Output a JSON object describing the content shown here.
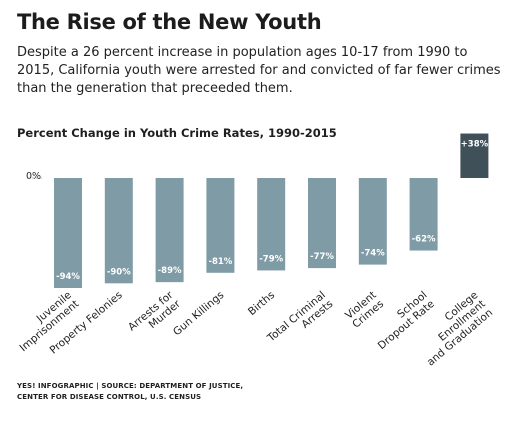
{
  "header": {
    "title": "The Rise of the New Youth",
    "subtitle": "Despite a 26 percent increase in population ages 10-17 from 1990 to 2015, California youth were arrested for and convicted of far fewer crimes than the generation that preceeded them."
  },
  "chart_data": {
    "type": "bar",
    "title": "Percent Change in Youth Crime Rates, 1990-2015",
    "zero_label": "0%",
    "categories": [
      [
        "Juvenile",
        "Imprisonment"
      ],
      [
        "Property Felonies"
      ],
      [
        "Arrests for",
        "Murder"
      ],
      [
        "Gun Killings"
      ],
      [
        "Births"
      ],
      [
        "Total Criminal",
        "Arrests"
      ],
      [
        "Violent",
        "Crimes"
      ],
      [
        "School",
        "Dropout Rate"
      ],
      [
        "College",
        "Enrollment",
        "and Graduation"
      ]
    ],
    "values": [
      -94,
      -90,
      -89,
      -81,
      -79,
      -77,
      -74,
      -62,
      38
    ],
    "value_labels": [
      "-94%",
      "-90%",
      "-89%",
      "-81%",
      "-79%",
      "-77%",
      "-74%",
      "-62%",
      "+38%"
    ],
    "colors": {
      "negative": "#7f9ba6",
      "positive": "#3f5059"
    },
    "grid": false,
    "legend": "none"
  },
  "footer": {
    "lines": [
      "YES! INFOGRAPHIC | SOURCE: DEPARTMENT OF JUSTICE,",
      "CENTER FOR DISEASE CONTROL, U.S. CENSUS"
    ]
  }
}
